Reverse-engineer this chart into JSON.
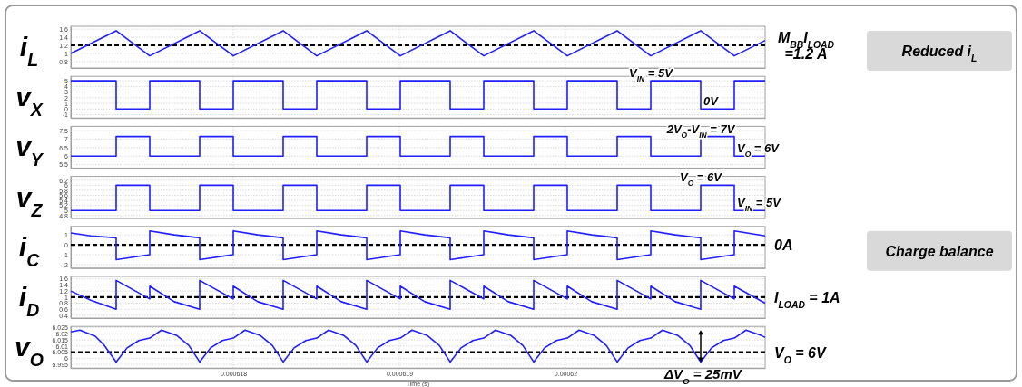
{
  "chart_data": [
    {
      "type": "line",
      "ylabel": "i$_{L}$",
      "xlim": [
        0.0006170219,
        0.0006212022
      ],
      "xticks": [
        0.000618,
        0.000619,
        0.00062
      ],
      "ylim": [
        0.64,
        1.67
      ],
      "yticks": [
        0.8,
        1,
        1.2,
        1.4,
        1.6
      ],
      "grid": true,
      "tick_labels": "y",
      "x": [
        0.0006170219,
        0.0006172951,
        0.0006174973,
        0.0006177978,
        0.000618,
        0.0006183005,
        0.0006185027,
        0.0006188033,
        0.0006190055,
        0.000619306,
        0.0006195082,
        0.0006198088,
        0.0006200109,
        0.0006203115,
        0.0006205137,
        0.0006208142,
        0.0006210164,
        0.0006212022
      ],
      "series": [
        {
          "color": "#1f1fff",
          "values": [
            1.0,
            1.56,
            0.94,
            1.56,
            0.94,
            1.56,
            0.94,
            1.56,
            0.94,
            1.56,
            0.94,
            1.56,
            0.94,
            1.56,
            0.94,
            1.56,
            0.94,
            1.32
          ]
        }
      ],
      "ref_lines": [
        {
          "axis": "y",
          "value": 1.2,
          "label": "M$_{BB}$I$_{LOAD}$ =1.2 A",
          "color": "#000000",
          "line_style": "dashed"
        }
      ],
      "annotations": [
        "Reduced i$_{L}$"
      ]
    },
    {
      "type": "step",
      "ylabel": "v$_{X}$",
      "xlim": [
        0.0006170219,
        0.0006212022
      ],
      "xticks": [
        0.000618,
        0.000619,
        0.00062
      ],
      "ylim": [
        -1.6,
        5.8
      ],
      "yticks": [
        -1,
        0,
        1,
        2,
        3,
        4,
        5
      ],
      "grid": true,
      "tick_labels": "y",
      "x": [
        0.0006170219,
        0.0006172951,
        0.0006174973,
        0.0006177978,
        0.000618,
        0.0006183005,
        0.0006185027,
        0.0006188033,
        0.0006190055,
        0.000619306,
        0.0006195082,
        0.0006198088,
        0.0006200109,
        0.0006203115,
        0.0006205137,
        0.0006208142,
        0.0006210164,
        0.0006212022
      ],
      "series": [
        {
          "color": "#1f1fff",
          "values": [
            5,
            0,
            5,
            0,
            5,
            0,
            5,
            0,
            5,
            0,
            5,
            0,
            5,
            0,
            5,
            0,
            5,
            5
          ]
        }
      ],
      "annotations": [
        {
          "text": "V$_{IN}$ = 5V",
          "x": 0.0006205137,
          "y": 5
        },
        {
          "text": "0V",
          "x": 0.0006208142,
          "y": 0
        }
      ]
    },
    {
      "type": "step",
      "ylabel": "v$_{Y}$",
      "xlim": [
        0.0006170219,
        0.0006212022
      ],
      "xticks": [
        0.000618,
        0.000619,
        0.00062
      ],
      "ylim": [
        5.3,
        7.75
      ],
      "yticks": [
        5.5,
        6,
        6.5,
        7,
        7.5
      ],
      "grid": true,
      "tick_labels": "y",
      "x": [
        0.0006170219,
        0.0006172951,
        0.0006174973,
        0.0006177978,
        0.000618,
        0.0006183005,
        0.0006185027,
        0.0006188033,
        0.0006190055,
        0.000619306,
        0.0006195082,
        0.0006198088,
        0.0006200109,
        0.0006203115,
        0.0006205137,
        0.0006208142,
        0.0006210164,
        0.0006212022
      ],
      "series": [
        {
          "color": "#1f1fff",
          "values": [
            6,
            7.15,
            6,
            7.15,
            6,
            7.15,
            6,
            7.15,
            6,
            7.15,
            6,
            7.15,
            6,
            7.15,
            6,
            7.15,
            6,
            6
          ]
        }
      ],
      "annotations": [
        {
          "text": "2V$_{O}$-V$_{IN}$ = 7V",
          "x": 0.0006208142,
          "y": 7.15
        },
        {
          "text": "V$_{O}$ = 6V",
          "x": 0.0006210164,
          "y": 6
        }
      ]
    },
    {
      "type": "step",
      "ylabel": "v$_{Z}$",
      "xlim": [
        0.0006170219,
        0.0006212022
      ],
      "xticks": [
        0.000618,
        0.000619,
        0.00062
      ],
      "ylim": [
        4.7,
        6.35
      ],
      "yticks": [
        4.8,
        5,
        5.2,
        5.4,
        5.6,
        5.8,
        6,
        6.2
      ],
      "grid": true,
      "tick_labels": "y",
      "x": [
        0.0006170219,
        0.0006172951,
        0.0006174973,
        0.0006177978,
        0.000618,
        0.0006183005,
        0.0006185027,
        0.0006188033,
        0.0006190055,
        0.000619306,
        0.0006195082,
        0.0006198088,
        0.0006200109,
        0.0006203115,
        0.0006205137,
        0.0006208142,
        0.0006210164,
        0.0006212022
      ],
      "series": [
        {
          "color": "#1f1fff",
          "values": [
            5,
            6,
            5,
            6,
            5,
            6,
            5,
            6,
            5,
            6,
            5,
            6,
            5,
            6,
            5,
            6,
            5,
            5
          ]
        }
      ],
      "annotations": [
        {
          "text": "V$_{O}$ = 6V",
          "x": 0.0006208142,
          "y": 6
        },
        {
          "text": "V$_{IN}$ = 5V",
          "x": 0.0006210164,
          "y": 5
        }
      ]
    },
    {
      "type": "line",
      "ylabel": "i$_{C}$",
      "xlim": [
        0.0006170219,
        0.0006212022
      ],
      "xticks": [
        0.000618,
        0.000619,
        0.00062
      ],
      "ylim": [
        -2.35,
        1.85
      ],
      "yticks": [
        -2,
        -1,
        0,
        1
      ],
      "grid": true,
      "tick_labels": "y",
      "x": [
        0.0006170219,
        0.0006171421,
        0.0006172951,
        0.0006172951,
        0.0006174973,
        0.0006174973,
        0.0006176448,
        0.0006177978,
        0.0006177978,
        0.000618,
        0.000618,
        0.0006181475,
        0.0006183005,
        0.0006183005,
        0.0006185027,
        0.0006185027,
        0.0006186502,
        0.0006188033,
        0.0006188033,
        0.0006190055,
        0.0006190055,
        0.000619153,
        0.000619306,
        0.000619306,
        0.0006195082,
        0.0006195082,
        0.0006196557,
        0.0006198088,
        0.0006198088,
        0.0006200109,
        0.0006200109,
        0.0006201584,
        0.0006203115,
        0.0006203115,
        0.0006205137,
        0.0006205137,
        0.0006206612,
        0.0006208142,
        0.0006208142,
        0.0006210164,
        0.0006210164,
        0.0006212022
      ],
      "series": [
        {
          "color": "#1f1fff",
          "values": [
            1.2,
            0.9,
            0.7,
            -1.5,
            -1.0,
            1.4,
            1.0,
            0.7,
            -1.5,
            -1.0,
            1.4,
            1.0,
            0.7,
            -1.5,
            -1.0,
            1.4,
            1.0,
            0.7,
            -1.5,
            -1.0,
            1.4,
            1.0,
            0.7,
            -1.5,
            -1.0,
            1.4,
            1.0,
            0.7,
            -1.5,
            -1.0,
            1.4,
            1.0,
            0.7,
            -1.5,
            -1.0,
            1.4,
            1.0,
            0.7,
            -1.5,
            -1.0,
            1.4,
            0.9
          ]
        }
      ],
      "ref_lines": [
        {
          "axis": "y",
          "value": 0,
          "label": "0A",
          "color": "#000000",
          "line_style": "dashed"
        }
      ],
      "annotations": [
        "Charge balance"
      ]
    },
    {
      "type": "line",
      "ylabel": "i$_{D}$",
      "xlim": [
        0.0006170219,
        0.0006212022
      ],
      "xticks": [
        0.000618,
        0.000619,
        0.00062
      ],
      "ylim": [
        0.31,
        1.68
      ],
      "yticks": [
        0.4,
        0.6,
        0.8,
        1,
        1.2,
        1.4,
        1.6
      ],
      "grid": true,
      "tick_labels": "y",
      "x": [
        0.0006170219,
        0.0006171421,
        0.0006172951,
        0.0006172951,
        0.0006174973,
        0.0006174973,
        0.0006176448,
        0.0006177978,
        0.0006177978,
        0.000618,
        0.000618,
        0.0006181475,
        0.0006183005,
        0.0006183005,
        0.0006185027,
        0.0006185027,
        0.0006186502,
        0.0006188033,
        0.0006188033,
        0.0006190055,
        0.0006190055,
        0.000619153,
        0.000619306,
        0.000619306,
        0.0006195082,
        0.0006195082,
        0.0006196557,
        0.0006198088,
        0.0006198088,
        0.0006200109,
        0.0006200109,
        0.0006201584,
        0.0006203115,
        0.0006203115,
        0.0006205137,
        0.0006205137,
        0.0006206612,
        0.0006208142,
        0.0006208142,
        0.0006210164,
        0.0006210164,
        0.0006212022
      ],
      "series": [
        {
          "color": "#1f1fff",
          "values": [
            1.2,
            0.9,
            0.6,
            1.55,
            0.94,
            1.36,
            0.85,
            0.6,
            1.55,
            0.94,
            1.36,
            0.85,
            0.6,
            1.55,
            0.94,
            1.36,
            0.85,
            0.6,
            1.55,
            0.94,
            1.36,
            0.85,
            0.6,
            1.55,
            0.94,
            1.36,
            0.85,
            0.6,
            1.55,
            0.94,
            1.36,
            0.85,
            0.6,
            1.55,
            0.94,
            1.36,
            0.85,
            0.6,
            1.55,
            0.94,
            1.36,
            0.8
          ]
        }
      ],
      "ref_lines": [
        {
          "axis": "y",
          "value": 1,
          "label": "I$_{LOAD}$ = 1A",
          "color": "#000000",
          "line_style": "dashed"
        }
      ]
    },
    {
      "type": "line",
      "ylabel": "v$_{O}$",
      "xlabel": "Time (s)",
      "xlim": [
        0.0006170219,
        0.0006212022
      ],
      "xticks": [
        0.000618,
        0.000619,
        0.00062
      ],
      "ylim": [
        5.992,
        6.026
      ],
      "yticks": [
        5.995,
        6,
        6.005,
        6.01,
        6.015,
        6.02,
        6.025
      ],
      "grid": true,
      "x": [
        0.0006170219,
        0.0006170765,
        0.0006171694,
        0.000617224,
        0.0006172951,
        0.0006173607,
        0.0006174317,
        0.0006174973,
        0.0006175683,
        0.0006176612,
        0.0006177323,
        0.0006177978,
        0.0006178634,
        0.0006179345,
        0.000618,
        0.000618071,
        0.0006181639,
        0.000618235,
        0.0006183005,
        0.0006183661,
        0.0006184372,
        0.0006185027,
        0.0006185737,
        0.0006186666,
        0.0006187377,
        0.0006188033,
        0.0006188688,
        0.0006189399,
        0.0006190055,
        0.0006190765,
        0.0006191694,
        0.0006192405,
        0.000619306,
        0.0006193716,
        0.0006194427,
        0.0006195082,
        0.0006195792,
        0.0006196721,
        0.0006197432,
        0.0006198088,
        0.0006198743,
        0.0006199454,
        0.0006200109,
        0.0006200819,
        0.0006201748,
        0.0006202459,
        0.0006203115,
        0.000620377,
        0.0006204481,
        0.0006205137,
        0.0006205847,
        0.0006206776,
        0.0006207487,
        0.0006208142,
        0.0006208798,
        0.0006209509,
        0.0006210164,
        0.0006210874,
        0.0006211803,
        0.0006212022
      ],
      "series": [
        {
          "color": "#1f1fff",
          "values": [
            6.0215,
            6.023,
            6.018,
            6.0105,
            5.997,
            6.0085,
            6.0145,
            6.0165,
            6.023,
            6.0185,
            6.0105,
            5.997,
            6.0085,
            6.0145,
            6.0165,
            6.023,
            6.0185,
            6.0105,
            5.997,
            6.0085,
            6.0145,
            6.0165,
            6.023,
            6.0185,
            6.0105,
            5.997,
            6.0085,
            6.0145,
            6.0165,
            6.023,
            6.0185,
            6.0105,
            5.997,
            6.0085,
            6.0145,
            6.0165,
            6.023,
            6.0185,
            6.0105,
            5.997,
            6.0085,
            6.0145,
            6.0165,
            6.023,
            6.0185,
            6.0105,
            5.997,
            6.0085,
            6.0145,
            6.0165,
            6.023,
            6.0185,
            6.0105,
            5.997,
            6.0085,
            6.0145,
            6.0165,
            6.023,
            6.0185,
            6.017
          ]
        }
      ],
      "ref_lines": [
        {
          "axis": "y",
          "value": 6.005,
          "label": "V$_{O}$ = 6V",
          "color": "#000000",
          "line_style": "dashed"
        }
      ],
      "annotations": [
        {
          "text": "ΔV$_{O}$ = 25mV",
          "x": 0.0006208142,
          "y": 5.997
        }
      ]
    }
  ]
}
